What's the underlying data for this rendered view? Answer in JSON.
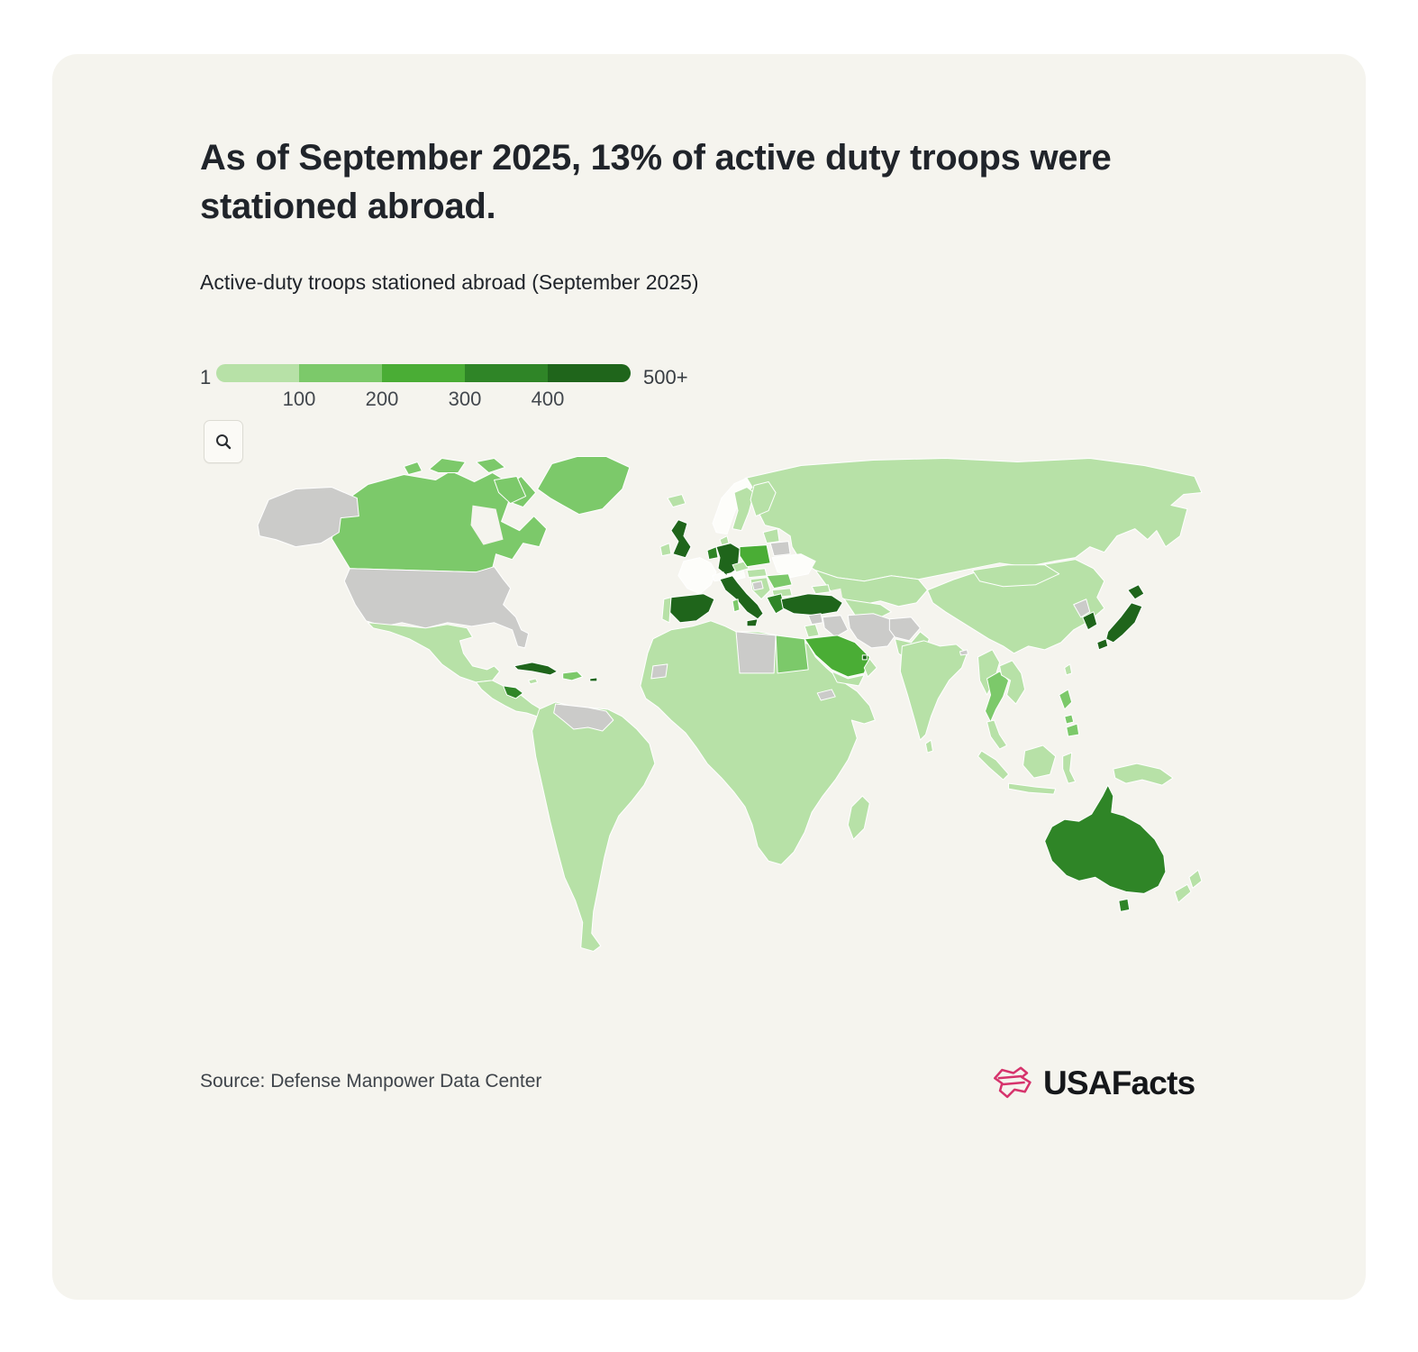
{
  "header": {
    "title": "As of September 2025, 13% of active duty troops were stationed abroad.",
    "subtitle": "Active-duty troops stationed abroad (September 2025)"
  },
  "legend": {
    "min_label": "1",
    "max_label": "500+",
    "tick_labels": [
      "100",
      "200",
      "300",
      "400"
    ],
    "bin_colors": [
      "#b7e1a7",
      "#7cc96a",
      "#4aad35",
      "#2f8527",
      "#1f651b"
    ]
  },
  "toolbar": {
    "zoom_icon": "magnifier-icon"
  },
  "map": {
    "no_data_color": "#cbcbc9",
    "zero_color": "#fdfdfa",
    "border_color": "#ffffff",
    "ocean_color": "#f5f4ee",
    "country_bins": {
      "alaska": "nodata",
      "usa": "nodata",
      "venezuela": "nodata",
      "libya": "nodata",
      "western-sahara": "nodata",
      "eritrea": "nodata",
      "syria": "nodata",
      "iraq": "nodata",
      "iran": "nodata",
      "afghanistan": "nodata",
      "belarus": "nodata",
      "bosnia": "nodata",
      "north-korea": "nodata",
      "bhutan": "nodata",
      "norway": "zero",
      "france": "zero",
      "switzerland": "zero",
      "austria": "zero",
      "ukraine": "zero",
      "iceland": 1,
      "ireland": 1,
      "sweden": 1,
      "finland": 1,
      "denmark": 1,
      "portugal": 1,
      "czechia": 1,
      "baltics": 1,
      "hungary-slovakia": 1,
      "balkans": 1,
      "bulgaria": 1,
      "mexico": 1,
      "central-america": 1,
      "jamaica": 1,
      "south-america": 1,
      "africa": 1,
      "madagascar": 1,
      "russia": 1,
      "kazakhstan": 1,
      "central-asia-south": 1,
      "caucasus": 1,
      "jordan-israel": 1,
      "yemen": 1,
      "oman": 1,
      "pakistan": 1,
      "india": 1,
      "sri-lanka": 1,
      "china": 1,
      "mongolia": 1,
      "myanmar": 1,
      "laos-vietnam": 1,
      "malay-peninsula": 1,
      "sumatra": 1,
      "java": 1,
      "borneo": 1,
      "sulawesi": 1,
      "new-guinea": 1,
      "taiwan": 1,
      "new-zealand": 1,
      "canada": 2,
      "greenland": 2,
      "egypt": 2,
      "hispaniola": 2,
      "sardinia": 2,
      "thailand": 2,
      "philippines": 2,
      "romania": 2,
      "poland": 3,
      "saudi-arabia": 3,
      "australia": 4,
      "greece": 4,
      "honduras": 4,
      "benelux": 4,
      "uk": 5,
      "germany": 5,
      "italy": 5,
      "spain": 5,
      "turkey": 5,
      "cuba": 5,
      "puerto-rico": 5,
      "bahrain-qatar": 5,
      "south-korea": 5,
      "japan": 5
    }
  },
  "footer": {
    "source": "Source: Defense Manpower Data Center",
    "brand": "USAFacts",
    "brand_color": "#d6336c"
  },
  "chart_data": {
    "type": "heatmap",
    "subtype": "choropleth-world-map",
    "title": "Active-duty troops stationed abroad (September 2025)",
    "headline": "As of September 2025, 13% of active duty troops were stationed abroad.",
    "legend": {
      "scale_min_label": "1",
      "scale_max_label": "500+",
      "breaks": [
        100,
        200,
        300,
        400
      ],
      "bin_labels": [
        "1-100",
        "100-200",
        "200-300",
        "300-400",
        "400-500+"
      ],
      "bin_colors": [
        "#b7e1a7",
        "#7cc96a",
        "#4aad35",
        "#2f8527",
        "#1f651b"
      ],
      "position": "top-left"
    },
    "country_values": {
      "United Kingdom": "400-500+",
      "Germany": "400-500+",
      "Spain": "400-500+",
      "Italy": "400-500+",
      "Turkey": "400-500+",
      "Japan": "400-500+",
      "South Korea": "400-500+",
      "Cuba (Guantanamo)": "400-500+",
      "Bahrain/Qatar": "400-500+",
      "Australia": "300-400",
      "Greece": "300-400",
      "Honduras": "300-400",
      "Belgium/Netherlands": "300-400",
      "Poland": "200-300",
      "Saudi Arabia": "200-300",
      "Canada": "100-200",
      "Greenland": "100-200",
      "Egypt": "100-200",
      "Thailand": "100-200",
      "Philippines": "100-200",
      "Romania": "100-200",
      "Hispaniola": "100-200",
      "Most other countries (e.g. Mexico, Brazil, Russia, China, India, most of Africa)": "1-100",
      "France": "none shown (white)",
      "Norway": "none shown (white)",
      "Ukraine": "none shown (white)",
      "no_data_gray": [
        "United States",
        "Venezuela",
        "Libya",
        "Western Sahara",
        "Eritrea",
        "Syria",
        "Iraq",
        "Iran",
        "Afghanistan",
        "Belarus",
        "Bosnia",
        "North Korea"
      ]
    },
    "source": "Defense Manpower Data Center"
  }
}
